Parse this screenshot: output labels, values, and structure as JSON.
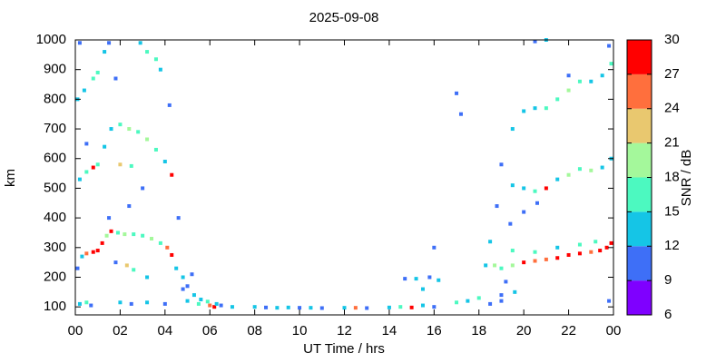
{
  "chart_data": {
    "type": "scatter",
    "title": "2025-09-08",
    "x_label": "UT Time / hrs",
    "y_label": "km",
    "xlim": [
      0,
      24
    ],
    "xticks": [
      {
        "value": 0,
        "label": "00"
      },
      {
        "value": 2,
        "label": "02"
      },
      {
        "value": 4,
        "label": "04"
      },
      {
        "value": 6,
        "label": "06"
      },
      {
        "value": 8,
        "label": "08"
      },
      10,
      12,
      14,
      16,
      18,
      20,
      22,
      {
        "value": 24,
        "label": "00"
      }
    ],
    "ylim": [
      73,
      1000
    ],
    "yticks": [
      100,
      200,
      300,
      400,
      500,
      600,
      700,
      800,
      900,
      1000
    ],
    "colorbar": {
      "label": "SNR / dB",
      "lim": [
        6,
        30
      ],
      "ticks": [
        6,
        9,
        12,
        15,
        18,
        21,
        24,
        27,
        30
      ],
      "colors": [
        "#7f00ff",
        "#3e6ff7",
        "#15c5e6",
        "#4cf9c0",
        "#a4f89b",
        "#e9c86f",
        "#ff6f3d",
        "#ff0000"
      ]
    },
    "x": [
      0.2,
      0.5,
      0.7,
      2.0,
      2.5,
      3.2,
      4.0,
      5.0,
      5.5,
      6.0,
      6.2,
      6.5,
      7.0,
      8.0,
      8.5,
      9.0,
      9.5,
      10.0,
      10.5,
      11.0,
      12.0,
      12.5,
      13.0,
      14.0,
      14.5,
      15.0,
      15.5,
      16.0,
      17.0,
      17.5,
      18.0,
      18.5,
      19.0,
      23.8,
      0.1,
      0.3,
      0.5,
      0.8,
      1.0,
      1.2,
      1.4,
      1.6,
      1.9,
      2.2,
      2.6,
      3.0,
      3.4,
      3.8,
      4.1,
      4.3,
      2.3,
      2.6,
      3.2,
      4.5,
      4.8,
      5.0,
      5.3,
      5.6,
      5.9,
      6.3,
      0.2,
      0.5,
      0.8,
      1.0,
      1.3,
      1.6,
      2.0,
      2.4,
      2.8,
      3.2,
      3.6,
      4.0,
      4.3,
      2.0,
      2.5,
      0.1,
      0.4,
      0.8,
      1.0,
      1.3,
      1.5,
      2.9,
      3.2,
      3.6,
      3.8,
      0.2,
      0.5,
      1.5,
      1.8,
      2.4,
      3.0,
      4.2,
      4.6,
      5.2,
      4.8,
      1.8,
      14.7,
      15.2,
      15.8,
      16.2,
      15.5,
      17.0,
      17.2,
      16.0,
      18.3,
      18.7,
      19.0,
      19.5,
      20.0,
      20.5,
      21.0,
      21.5,
      22.0,
      22.5,
      23.0,
      23.4,
      23.7,
      23.9,
      19.5,
      20.5,
      21.5,
      22.5,
      23.2,
      18.5,
      19.2,
      19.6,
      19.0,
      19.5,
      20.0,
      20.5,
      21.0,
      21.5,
      22.0,
      22.5,
      23.0,
      23.5,
      23.9,
      19.0,
      20.0,
      18.8,
      19.4,
      20.6,
      19.5,
      20.0,
      20.5,
      21.0,
      21.5,
      22.0,
      22.5,
      23.0,
      23.5,
      23.9,
      20.5,
      21.0,
      22.0,
      23.8
    ],
    "y": [
      110,
      115,
      105,
      115,
      110,
      115,
      110,
      120,
      110,
      105,
      100,
      105,
      100,
      100,
      98,
      97,
      98,
      97,
      97,
      96,
      97,
      97,
      96,
      98,
      100,
      98,
      105,
      100,
      115,
      120,
      130,
      110,
      120,
      120,
      230,
      270,
      280,
      285,
      290,
      315,
      340,
      355,
      350,
      345,
      345,
      340,
      330,
      315,
      300,
      275,
      240,
      225,
      200,
      230,
      200,
      170,
      140,
      125,
      118,
      110,
      530,
      555,
      570,
      580,
      640,
      700,
      715,
      700,
      690,
      665,
      630,
      590,
      545,
      580,
      575,
      800,
      830,
      870,
      890,
      960,
      990,
      990,
      960,
      935,
      900,
      990,
      650,
      400,
      250,
      440,
      500,
      780,
      400,
      210,
      160,
      870,
      195,
      195,
      200,
      190,
      160,
      820,
      750,
      300,
      240,
      240,
      230,
      240,
      250,
      255,
      260,
      265,
      275,
      280,
      285,
      290,
      300,
      315,
      290,
      285,
      300,
      310,
      320,
      320,
      185,
      150,
      140,
      510,
      500,
      490,
      500,
      530,
      545,
      565,
      560,
      570,
      600,
      580,
      420,
      440,
      380,
      450,
      700,
      760,
      770,
      770,
      800,
      830,
      860,
      860,
      880,
      920,
      995,
      1000,
      880,
      980
    ],
    "snr": [
      12,
      15,
      10,
      12,
      10,
      14,
      11,
      13,
      15,
      24,
      28,
      11,
      12,
      14,
      11,
      12,
      13,
      10,
      13,
      11,
      12,
      24,
      11,
      12,
      17,
      27,
      13,
      11,
      16,
      12,
      15,
      10,
      11,
      10,
      11,
      14,
      25,
      27,
      28,
      27,
      18,
      27,
      16,
      18,
      17,
      15,
      19,
      17,
      25,
      28,
      22,
      15,
      14,
      13,
      12,
      11,
      14,
      12,
      16,
      13,
      12,
      15,
      28,
      16,
      12,
      14,
      16,
      18,
      15,
      19,
      16,
      13,
      27,
      21,
      15,
      12,
      14,
      16,
      15,
      13,
      11,
      13,
      17,
      15,
      14,
      10,
      11,
      10,
      11,
      10,
      11,
      10,
      11,
      10,
      11,
      10,
      11,
      13,
      11,
      14,
      12,
      10,
      11,
      10,
      13,
      20,
      17,
      19,
      28,
      25,
      26,
      28,
      27,
      28,
      26,
      27,
      28,
      29,
      15,
      17,
      14,
      16,
      15,
      12,
      11,
      13,
      10,
      14,
      13,
      16,
      27,
      12,
      18,
      17,
      19,
      13,
      14,
      11,
      10,
      11,
      10,
      11,
      14,
      13,
      12,
      15,
      16,
      18,
      17,
      12,
      14,
      16,
      11,
      13,
      11,
      10
    ]
  }
}
